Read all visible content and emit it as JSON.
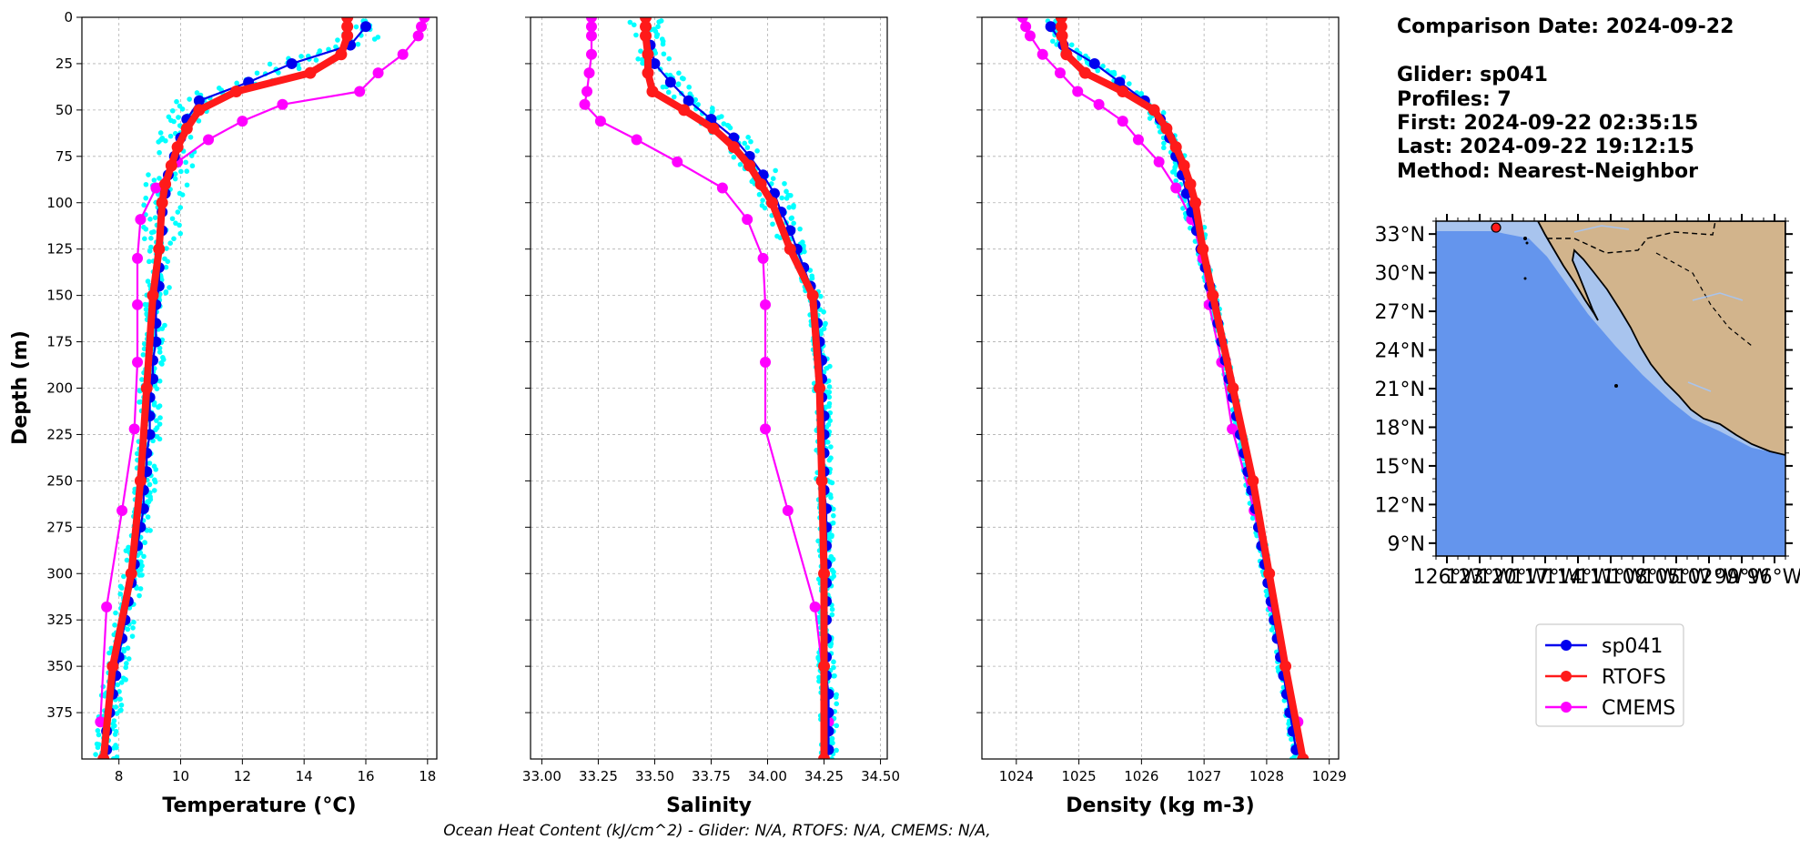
{
  "info": {
    "comparison_date": "Comparison Date: 2024-09-22",
    "glider": "Glider: sp041",
    "profiles": "Profiles: 7",
    "first": "First: 2024-09-22 02:35:15",
    "last": "Last: 2024-09-22 19:12:15",
    "method": "Method: Nearest-Neighbor"
  },
  "footer": "Ocean Heat Content (kJ/cm^2) - Glider: N/A,  RTOFS: N/A,  CMEMS: N/A,",
  "colors": {
    "sp041": "#0000ee",
    "rtofs": "#ff1a1a",
    "cmems": "#ff00ff",
    "glider_raw": "#00ffff",
    "ocean": "#6495ed",
    "shelf": "#a8c4ee",
    "land": "#d2b48c"
  },
  "legend": [
    {
      "label": "sp041",
      "color": "#0000ee"
    },
    {
      "label": "RTOFS",
      "color": "#ff1a1a"
    },
    {
      "label": "CMEMS",
      "color": "#ff00ff"
    }
  ],
  "map": {
    "lat_labels": [
      "33°N",
      "30°N",
      "27°N",
      "24°N",
      "21°N",
      "18°N",
      "15°N",
      "12°N",
      "9°N"
    ],
    "lon_labels": [
      "126°W",
      "123°W",
      "120°W",
      "117°W",
      "114°W",
      "111°W",
      "108°W",
      "105°W",
      "102°W",
      "99°W",
      "96°W"
    ],
    "lat_range": [
      8,
      34
    ],
    "lon_range": [
      -127,
      -95
    ],
    "glider_position": {
      "lon": -121.5,
      "lat": 33.5
    }
  },
  "chart_data": [
    {
      "type": "line",
      "xlabel": "Temperature (°C)",
      "ylabel": "Depth (m)",
      "xlim": [
        6.8,
        18.3
      ],
      "ylim": [
        400,
        0
      ],
      "xticks": [
        8,
        10,
        12,
        14,
        16,
        18
      ],
      "yticks": [
        0,
        25,
        50,
        75,
        100,
        125,
        150,
        175,
        200,
        225,
        250,
        275,
        300,
        325,
        350,
        375
      ],
      "grid": true,
      "series": [
        {
          "name": "sp041",
          "depth": [
            5,
            15,
            25,
            35,
            45,
            55,
            65,
            75,
            85,
            95,
            105,
            115,
            125,
            135,
            145,
            155,
            165,
            175,
            185,
            195,
            205,
            215,
            225,
            235,
            245,
            255,
            265,
            275,
            285,
            295,
            305,
            315,
            325,
            335,
            345,
            355,
            365,
            375,
            385,
            395
          ],
          "values": [
            16.0,
            15.5,
            13.6,
            12.2,
            10.6,
            10.2,
            10.0,
            9.8,
            9.6,
            9.5,
            9.4,
            9.4,
            9.3,
            9.3,
            9.3,
            9.2,
            9.2,
            9.2,
            9.1,
            9.1,
            9.0,
            9.0,
            9.0,
            8.9,
            8.9,
            8.8,
            8.8,
            8.7,
            8.6,
            8.5,
            8.4,
            8.3,
            8.2,
            8.1,
            8.0,
            7.9,
            7.8,
            7.7,
            7.6,
            7.6
          ]
        },
        {
          "name": "RTOFS",
          "depth": [
            0,
            5,
            10,
            20,
            30,
            40,
            50,
            60,
            70,
            80,
            90,
            100,
            125,
            150,
            200,
            250,
            300,
            350,
            400
          ],
          "values": [
            15.4,
            15.4,
            15.4,
            15.2,
            14.2,
            11.8,
            10.6,
            10.2,
            9.9,
            9.7,
            9.5,
            9.4,
            9.3,
            9.1,
            8.9,
            8.7,
            8.4,
            7.8,
            7.5
          ]
        },
        {
          "name": "CMEMS",
          "depth": [
            0,
            5,
            10,
            20,
            30,
            40,
            47,
            56,
            66,
            78,
            92,
            109,
            130,
            155,
            186,
            222,
            266,
            318,
            380
          ],
          "values": [
            17.9,
            17.8,
            17.7,
            17.2,
            16.4,
            15.8,
            13.3,
            12.0,
            10.9,
            9.9,
            9.2,
            8.7,
            8.6,
            8.6,
            8.6,
            8.5,
            8.1,
            7.6,
            7.4
          ]
        }
      ]
    },
    {
      "type": "line",
      "xlabel": "Salinity",
      "ylabel": "",
      "xlim": [
        32.95,
        34.53
      ],
      "ylim": [
        400,
        0
      ],
      "xticks": [
        33.0,
        33.25,
        33.5,
        33.75,
        34.0,
        34.25,
        34.5
      ],
      "xtick_labels": [
        "33.00",
        "33.25",
        "33.50",
        "33.75",
        "34.00",
        "34.25",
        "34.50"
      ],
      "yticks": [
        0,
        25,
        50,
        75,
        100,
        125,
        150,
        175,
        200,
        225,
        250,
        275,
        300,
        325,
        350,
        375
      ],
      "grid": true,
      "series": [
        {
          "name": "sp041",
          "depth": [
            5,
            15,
            25,
            35,
            45,
            55,
            65,
            75,
            85,
            95,
            105,
            115,
            125,
            135,
            145,
            155,
            165,
            175,
            185,
            195,
            205,
            215,
            225,
            235,
            245,
            255,
            265,
            275,
            285,
            295,
            305,
            315,
            325,
            335,
            345,
            355,
            365,
            375,
            385,
            395
          ],
          "values": [
            33.46,
            33.48,
            33.5,
            33.57,
            33.65,
            33.75,
            33.85,
            33.92,
            33.98,
            34.03,
            34.06,
            34.1,
            34.13,
            34.16,
            34.19,
            34.21,
            34.22,
            34.23,
            34.24,
            34.24,
            34.24,
            34.25,
            34.25,
            34.25,
            34.25,
            34.25,
            34.26,
            34.26,
            34.26,
            34.26,
            34.26,
            34.26,
            34.26,
            34.26,
            34.26,
            34.26,
            34.27,
            34.27,
            34.27,
            34.27
          ]
        },
        {
          "name": "RTOFS",
          "depth": [
            0,
            5,
            10,
            20,
            30,
            40,
            50,
            60,
            70,
            80,
            90,
            100,
            125,
            150,
            200,
            250,
            300,
            350,
            400
          ],
          "values": [
            33.46,
            33.46,
            33.46,
            33.47,
            33.47,
            33.49,
            33.63,
            33.76,
            33.85,
            33.92,
            33.97,
            34.02,
            34.1,
            34.2,
            34.23,
            34.24,
            34.25,
            34.25,
            34.25
          ]
        },
        {
          "name": "CMEMS",
          "depth": [
            0,
            5,
            10,
            20,
            30,
            40,
            47,
            56,
            66,
            78,
            92,
            109,
            130,
            155,
            186,
            222,
            266,
            318,
            380
          ],
          "values": [
            33.22,
            33.22,
            33.22,
            33.22,
            33.21,
            33.2,
            33.19,
            33.26,
            33.42,
            33.6,
            33.8,
            33.91,
            33.98,
            33.99,
            33.99,
            33.99,
            34.09,
            34.21,
            34.27
          ]
        }
      ]
    },
    {
      "type": "line",
      "xlabel": "Density (kg m-3)",
      "ylabel": "",
      "xlim": [
        1023.45,
        1029.15
      ],
      "ylim": [
        400,
        0
      ],
      "xticks": [
        1024,
        1025,
        1026,
        1027,
        1028,
        1029
      ],
      "yticks": [
        0,
        25,
        50,
        75,
        100,
        125,
        150,
        175,
        200,
        225,
        250,
        275,
        300,
        325,
        350,
        375
      ],
      "grid": true,
      "series": [
        {
          "name": "sp041",
          "depth": [
            5,
            15,
            25,
            35,
            45,
            55,
            65,
            75,
            85,
            95,
            105,
            115,
            125,
            135,
            145,
            155,
            165,
            175,
            185,
            195,
            205,
            215,
            225,
            235,
            245,
            255,
            265,
            275,
            285,
            295,
            305,
            315,
            325,
            335,
            345,
            355,
            365,
            375,
            385,
            395
          ],
          "values": [
            1024.55,
            1024.75,
            1025.25,
            1025.65,
            1026.05,
            1026.3,
            1026.45,
            1026.55,
            1026.65,
            1026.72,
            1026.8,
            1026.88,
            1026.95,
            1027.02,
            1027.09,
            1027.16,
            1027.22,
            1027.28,
            1027.34,
            1027.4,
            1027.46,
            1027.52,
            1027.58,
            1027.64,
            1027.7,
            1027.76,
            1027.82,
            1027.87,
            1027.92,
            1027.97,
            1028.02,
            1028.07,
            1028.12,
            1028.17,
            1028.22,
            1028.27,
            1028.32,
            1028.37,
            1028.42,
            1028.47
          ]
        },
        {
          "name": "RTOFS",
          "depth": [
            0,
            5,
            10,
            20,
            30,
            40,
            50,
            60,
            70,
            80,
            90,
            100,
            125,
            150,
            200,
            250,
            300,
            350,
            400
          ],
          "values": [
            1024.72,
            1024.72,
            1024.73,
            1024.8,
            1025.1,
            1025.7,
            1026.2,
            1026.4,
            1026.55,
            1026.68,
            1026.78,
            1026.86,
            1026.98,
            1027.14,
            1027.46,
            1027.78,
            1028.04,
            1028.3,
            1028.58
          ]
        },
        {
          "name": "CMEMS",
          "depth": [
            0,
            5,
            10,
            20,
            30,
            40,
            47,
            56,
            66,
            78,
            92,
            109,
            130,
            155,
            186,
            222,
            266,
            318,
            380
          ],
          "values": [
            1024.1,
            1024.15,
            1024.22,
            1024.42,
            1024.7,
            1024.98,
            1025.32,
            1025.7,
            1025.95,
            1026.28,
            1026.55,
            1026.8,
            1026.98,
            1027.08,
            1027.28,
            1027.45,
            1027.8,
            1028.1,
            1028.5
          ]
        }
      ]
    }
  ]
}
